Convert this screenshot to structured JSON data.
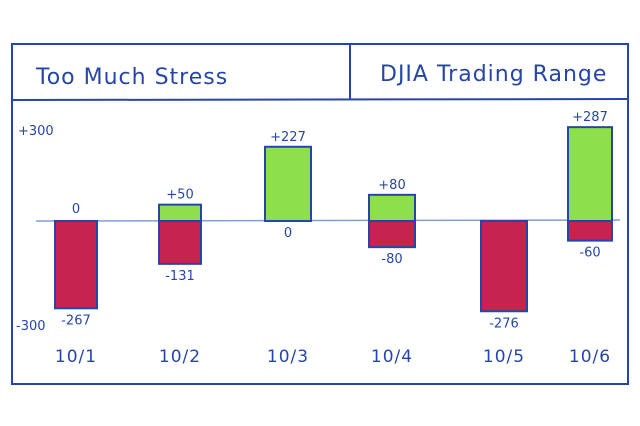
{
  "panel": {
    "left_title": "Too Much Stress",
    "right_title": "DJIA Trading Range"
  },
  "chart_data": {
    "type": "bar",
    "categories": [
      "10/1",
      "10/2",
      "10/3",
      "10/4",
      "10/5",
      "10/6"
    ],
    "series": [
      {
        "values": [
          0,
          50,
          227,
          80,
          0,
          287
        ]
      },
      {
        "values": [
          -267,
          -131,
          0,
          -80,
          -276,
          -60
        ]
      }
    ],
    "high_labels": [
      "0",
      "+50",
      "+227",
      "+80",
      "",
      "+287"
    ],
    "low_labels": [
      "-267",
      "-131",
      "0",
      "-80",
      "-276",
      "-60"
    ],
    "ylim": [
      -300,
      300
    ],
    "y_tick_labels": [
      "+300",
      "-300"
    ],
    "colors": {
      "gain": "#8ee04a",
      "loss": "#c8234f",
      "ink": "#2546a8",
      "zero_line": "#7f9fd0"
    }
  }
}
